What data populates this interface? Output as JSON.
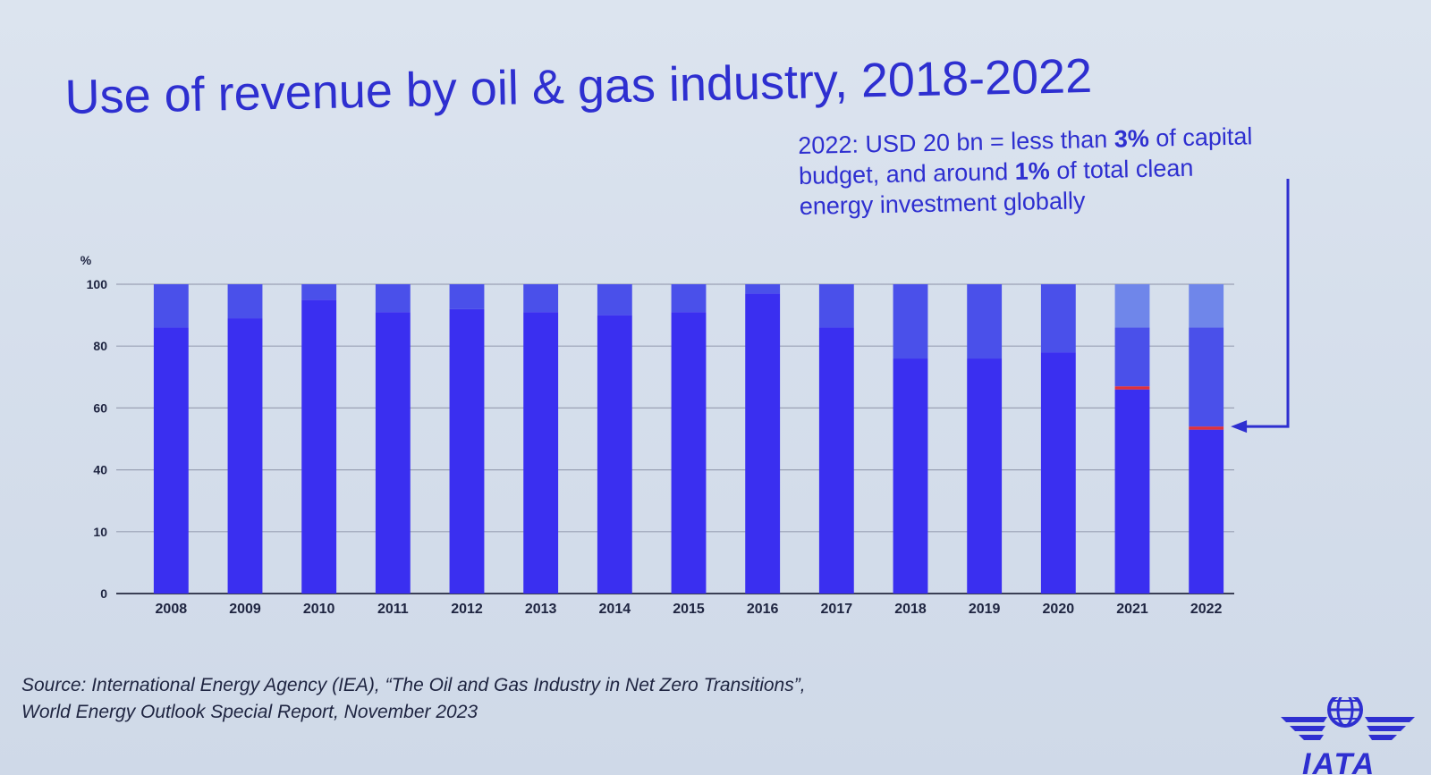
{
  "slide": {
    "title": "Use of revenue by oil & gas industry, 2018-2022",
    "annotation": {
      "line1_pre": "2022: USD 20 bn = less than ",
      "line1_bold": "3%",
      "line1_post": " of capital",
      "line2_pre": "budget, and around ",
      "line2_bold": "1%",
      "line2_post": " of total clean",
      "line3": "energy investment globally"
    },
    "source_line1": "Source: International Energy Agency (IEA), “The Oil and Gas Industry in Net Zero Transitions”,",
    "source_line2": "World Energy Outlook Special Report, November 2023",
    "logo_text": "IATA"
  },
  "chart_data": {
    "type": "bar",
    "stacked": true,
    "title": "Use of revenue by oil & gas industry, 2018-2022",
    "ylabel": "%",
    "y_tick_labels": [
      "0",
      "10",
      "40",
      "60",
      "80",
      "100"
    ],
    "ylim": [
      0,
      100
    ],
    "grid": true,
    "legend": "none",
    "categories": [
      "2008",
      "2009",
      "2010",
      "2011",
      "2012",
      "2013",
      "2014",
      "2015",
      "2016",
      "2017",
      "2018",
      "2019",
      "2020",
      "2021",
      "2022"
    ],
    "series": [
      {
        "color": "#3a2ff0",
        "values": [
          86,
          89,
          95,
          91,
          92,
          91,
          90,
          91,
          97,
          86,
          76,
          76,
          78,
          66,
          53
        ]
      },
      {
        "color": "#e0303a",
        "values": [
          0,
          0,
          0,
          0,
          0,
          0,
          0,
          0,
          0,
          0,
          0,
          0,
          0,
          1,
          1
        ]
      },
      {
        "color": "#4a50ea",
        "values": [
          14,
          11,
          5,
          9,
          8,
          9,
          10,
          9,
          3,
          14,
          24,
          24,
          22,
          19,
          32
        ]
      },
      {
        "color": "#6f86ea",
        "values": [
          0,
          0,
          0,
          0,
          0,
          0,
          0,
          0,
          0,
          0,
          0,
          0,
          0,
          14,
          14
        ]
      }
    ]
  }
}
